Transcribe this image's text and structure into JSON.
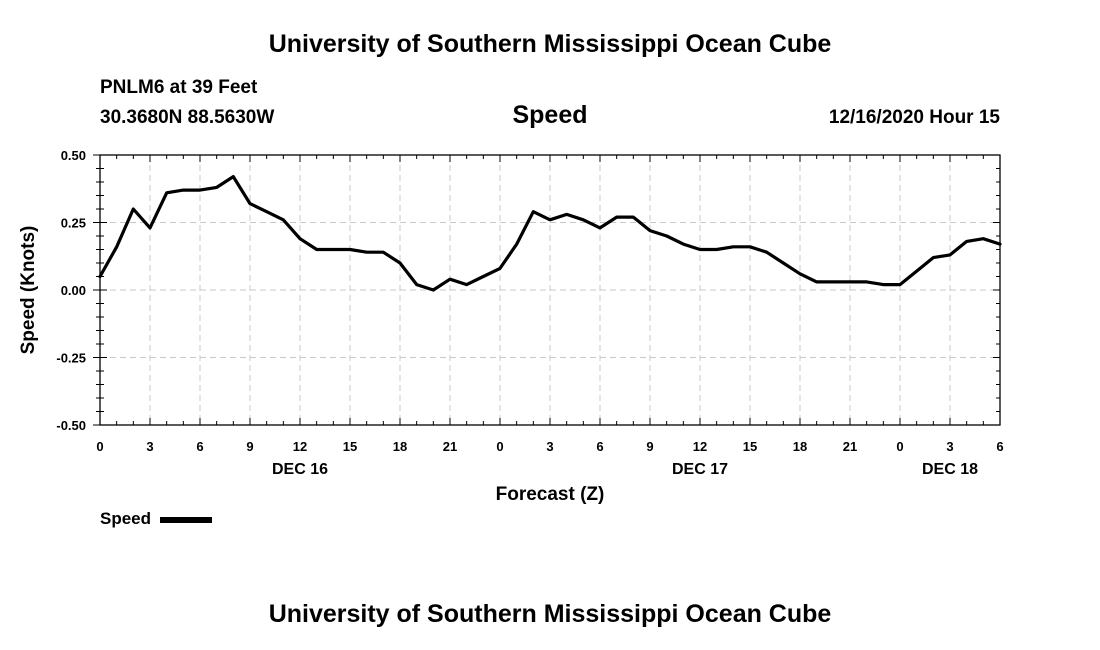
{
  "header": {
    "title": "University of Southern Mississippi Ocean Cube",
    "station": "PNLM6 at 39 Feet",
    "coords": "30.3680N 88.5630W",
    "chart_title": "Speed",
    "datetime": "12/16/2020 Hour 15"
  },
  "footer": {
    "title": "University of Southern Mississippi Ocean Cube"
  },
  "legend": {
    "label": "Speed"
  },
  "chart_data": {
    "type": "line",
    "title": "Speed",
    "xlabel": "Forecast (Z)",
    "ylabel": "Speed (Knots)",
    "ylim": [
      -0.5,
      0.5
    ],
    "xlim": [
      0,
      54
    ],
    "x_unit": "forecast hours from DEC 16 00Z",
    "grid": true,
    "yticks": [
      "-0.50",
      "-0.25",
      "0.00",
      "0.25",
      "0.50"
    ],
    "ytick_values": [
      -0.5,
      -0.25,
      0.0,
      0.25,
      0.5
    ],
    "xticks": [
      "0",
      "3",
      "6",
      "9",
      "12",
      "15",
      "18",
      "21",
      "0",
      "3",
      "6",
      "9",
      "12",
      "15",
      "18",
      "21",
      "0",
      "3",
      "6"
    ],
    "xtick_values": [
      0,
      3,
      6,
      9,
      12,
      15,
      18,
      21,
      24,
      27,
      30,
      33,
      36,
      39,
      42,
      45,
      48,
      51,
      54
    ],
    "day_labels": [
      {
        "label": "DEC 16",
        "x": 12
      },
      {
        "label": "DEC 17",
        "x": 36
      },
      {
        "label": "DEC 18",
        "x": 51
      }
    ],
    "series": [
      {
        "name": "Speed",
        "color": "#000000",
        "x": [
          0,
          1,
          2,
          3,
          4,
          5,
          6,
          7,
          8,
          9,
          10,
          11,
          12,
          13,
          14,
          15,
          16,
          17,
          18,
          19,
          20,
          21,
          22,
          23,
          24,
          25,
          26,
          27,
          28,
          29,
          30,
          31,
          32,
          33,
          34,
          35,
          36,
          37,
          38,
          39,
          40,
          41,
          42,
          43,
          44,
          45,
          46,
          47,
          48,
          49,
          50,
          51,
          52,
          53,
          54
        ],
        "values": [
          0.05,
          0.16,
          0.3,
          0.23,
          0.36,
          0.37,
          0.37,
          0.38,
          0.42,
          0.32,
          0.29,
          0.26,
          0.19,
          0.15,
          0.15,
          0.15,
          0.14,
          0.14,
          0.1,
          0.02,
          0.0,
          0.04,
          0.02,
          0.05,
          0.08,
          0.17,
          0.29,
          0.26,
          0.28,
          0.26,
          0.23,
          0.27,
          0.27,
          0.22,
          0.2,
          0.17,
          0.15,
          0.15,
          0.16,
          0.16,
          0.14,
          0.1,
          0.06,
          0.03,
          0.03,
          0.03,
          0.03,
          0.02,
          0.02,
          0.07,
          0.12,
          0.13,
          0.18,
          0.19,
          0.17
        ]
      }
    ]
  }
}
